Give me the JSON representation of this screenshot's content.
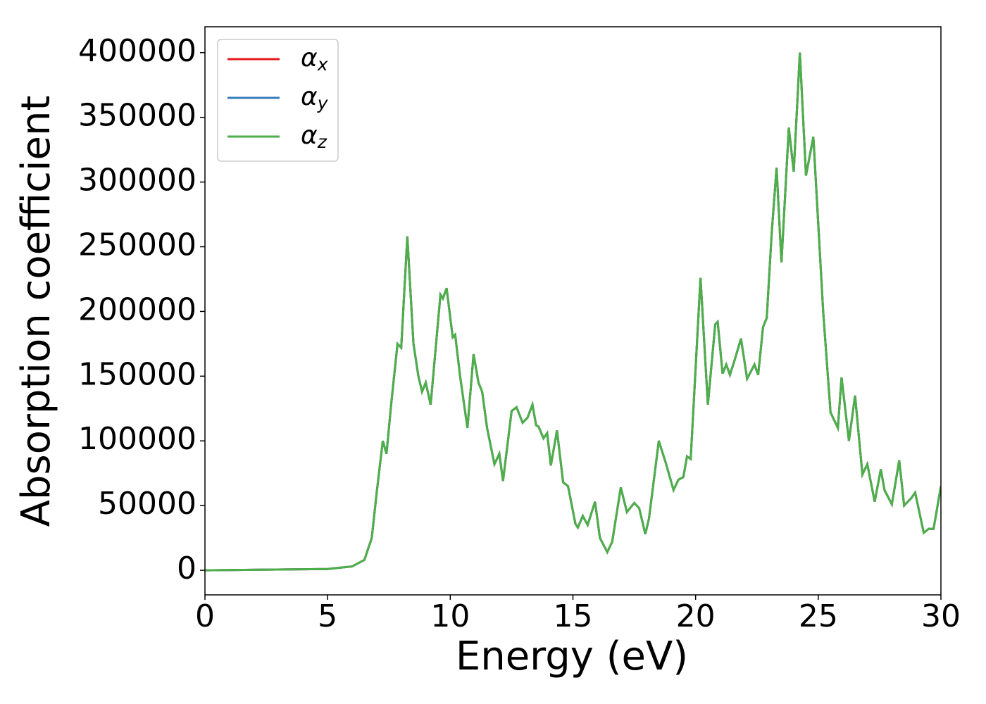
{
  "chart_data": {
    "type": "line",
    "xlabel": "Energy (eV)",
    "ylabel": "Absorption coefficient",
    "x": [
      0,
      5,
      6,
      6.5,
      6.8,
      7.0,
      7.25,
      7.4,
      7.6,
      7.85,
      8.0,
      8.25,
      8.5,
      8.7,
      8.85,
      9.0,
      9.2,
      9.6,
      9.7,
      9.85,
      10.1,
      10.2,
      10.4,
      10.7,
      10.95,
      11.15,
      11.3,
      11.5,
      11.8,
      12.0,
      12.15,
      12.5,
      12.7,
      12.95,
      13.15,
      13.35,
      13.5,
      13.6,
      13.8,
      13.95,
      14.1,
      14.35,
      14.6,
      14.8,
      15.1,
      15.2,
      15.4,
      15.6,
      15.9,
      16.1,
      16.4,
      16.6,
      16.95,
      17.2,
      17.5,
      17.7,
      17.95,
      18.1,
      18.5,
      18.8,
      19.1,
      19.3,
      19.5,
      19.65,
      19.8,
      20.2,
      20.5,
      20.8,
      20.9,
      21.1,
      21.25,
      21.4,
      21.6,
      21.85,
      22.1,
      22.4,
      22.55,
      22.75,
      22.9,
      23.1,
      23.3,
      23.5,
      23.8,
      24.0,
      24.25,
      24.5,
      24.8,
      25.2,
      25.5,
      25.8,
      25.95,
      26.25,
      26.5,
      26.8,
      27.0,
      27.3,
      27.55,
      27.7,
      28.0,
      28.3,
      28.5,
      28.8,
      28.95,
      29.3,
      29.5,
      29.7,
      30
    ],
    "series": [
      {
        "name": "αx",
        "color": "#e41a1c",
        "values": [
          0,
          1000,
          3000,
          8000,
          25000,
          60000,
          100000,
          90000,
          130000,
          175000,
          172000,
          258000,
          175000,
          150000,
          138000,
          145000,
          128000,
          213000,
          210000,
          218000,
          180000,
          182000,
          150000,
          110000,
          167000,
          145000,
          138000,
          110000,
          82000,
          90000,
          69000,
          123000,
          126000,
          114000,
          118000,
          128000,
          112000,
          111000,
          102000,
          106000,
          81000,
          108000,
          68000,
          65000,
          36000,
          33000,
          42000,
          35000,
          53000,
          25000,
          14000,
          22000,
          64000,
          45000,
          52000,
          48000,
          28000,
          40000,
          100000,
          82000,
          62000,
          70000,
          72000,
          88000,
          86000,
          226000,
          128000,
          190000,
          192000,
          152000,
          159000,
          151000,
          163000,
          179000,
          148000,
          159000,
          151000,
          188000,
          195000,
          260000,
          311000,
          238000,
          342000,
          308000,
          400000,
          305000,
          335000,
          200000,
          122000,
          110000,
          149000,
          100000,
          135000,
          74000,
          82000,
          53000,
          78000,
          62000,
          51000,
          85000,
          50000,
          56000,
          60000,
          29000,
          32000,
          32000,
          65000
        ]
      },
      {
        "name": "αy",
        "color": "#377eb8",
        "values": [
          0,
          1000,
          3000,
          8000,
          25000,
          60000,
          100000,
          90000,
          130000,
          175000,
          172000,
          258000,
          175000,
          150000,
          138000,
          145000,
          128000,
          213000,
          210000,
          218000,
          180000,
          182000,
          150000,
          110000,
          167000,
          145000,
          138000,
          110000,
          82000,
          90000,
          69000,
          123000,
          126000,
          114000,
          118000,
          128000,
          112000,
          111000,
          102000,
          106000,
          81000,
          108000,
          68000,
          65000,
          36000,
          33000,
          42000,
          35000,
          53000,
          25000,
          14000,
          22000,
          64000,
          45000,
          52000,
          48000,
          28000,
          40000,
          100000,
          82000,
          62000,
          70000,
          72000,
          88000,
          86000,
          226000,
          128000,
          190000,
          192000,
          152000,
          159000,
          151000,
          163000,
          179000,
          148000,
          159000,
          151000,
          188000,
          195000,
          260000,
          311000,
          238000,
          342000,
          308000,
          400000,
          305000,
          335000,
          200000,
          122000,
          110000,
          149000,
          100000,
          135000,
          74000,
          82000,
          53000,
          78000,
          62000,
          51000,
          85000,
          50000,
          56000,
          60000,
          29000,
          32000,
          32000,
          65000
        ]
      },
      {
        "name": "αz",
        "color": "#4daf4a",
        "values": [
          0,
          1000,
          3000,
          8000,
          25000,
          60000,
          100000,
          90000,
          130000,
          175000,
          172000,
          258000,
          175000,
          150000,
          138000,
          145000,
          128000,
          213000,
          210000,
          218000,
          180000,
          182000,
          150000,
          110000,
          167000,
          145000,
          138000,
          110000,
          82000,
          90000,
          69000,
          123000,
          126000,
          114000,
          118000,
          128000,
          112000,
          111000,
          102000,
          106000,
          81000,
          108000,
          68000,
          65000,
          36000,
          33000,
          42000,
          35000,
          53000,
          25000,
          14000,
          22000,
          64000,
          45000,
          52000,
          48000,
          28000,
          40000,
          100000,
          82000,
          62000,
          70000,
          72000,
          88000,
          86000,
          226000,
          128000,
          190000,
          192000,
          152000,
          159000,
          151000,
          163000,
          179000,
          148000,
          159000,
          151000,
          188000,
          195000,
          260000,
          311000,
          238000,
          342000,
          308000,
          400000,
          305000,
          335000,
          200000,
          122000,
          110000,
          149000,
          100000,
          135000,
          74000,
          82000,
          53000,
          78000,
          62000,
          51000,
          85000,
          50000,
          56000,
          60000,
          29000,
          32000,
          32000,
          65000
        ]
      }
    ],
    "xlim": [
      0,
      30
    ],
    "xticks": [
      0,
      5,
      10,
      15,
      20,
      25,
      30
    ],
    "ylim": [
      -19000,
      420000
    ],
    "yticks": [
      0,
      50000,
      100000,
      150000,
      200000,
      250000,
      300000,
      350000,
      400000
    ],
    "grid": false,
    "legend": "upper left"
  }
}
